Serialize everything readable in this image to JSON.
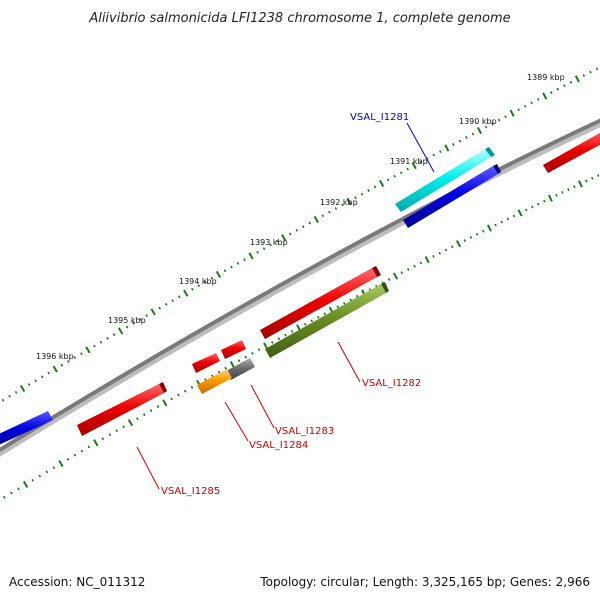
{
  "title": "Aliivibrio salmonicida LFI1238 chromosome 1, complete genome",
  "footer": {
    "accession": "Accession: NC_011312",
    "summary": "Topology: circular; Length: 3,325,165 bp; Genes: 2,966"
  },
  "scale_labels": [
    "1389 kbp",
    "1390 kbp",
    "1391 kbp",
    "1392 kbp",
    "1393 kbp",
    "1394 kbp",
    "1395 kbp",
    "1396 kbp"
  ],
  "gene_labels": [
    {
      "text": "VSAL_I1281",
      "color": "#0000cc"
    },
    {
      "text": "VSAL_I1282",
      "color": "#cc0000"
    },
    {
      "text": "VSAL_I1283",
      "color": "#cc0000"
    },
    {
      "text": "VSAL_I1284",
      "color": "#cc0000"
    },
    {
      "text": "VSAL_I1285",
      "color": "#cc0000"
    }
  ],
  "colors": {
    "backbone": "#7a7a7a",
    "ticks": "#1a7a1a",
    "red": "#e00000",
    "blue": "#0000dd",
    "cyan": "#00e5e5",
    "olive": "#6b8e23",
    "orange": "#ff9900",
    "gray": "#6e6e6e"
  }
}
